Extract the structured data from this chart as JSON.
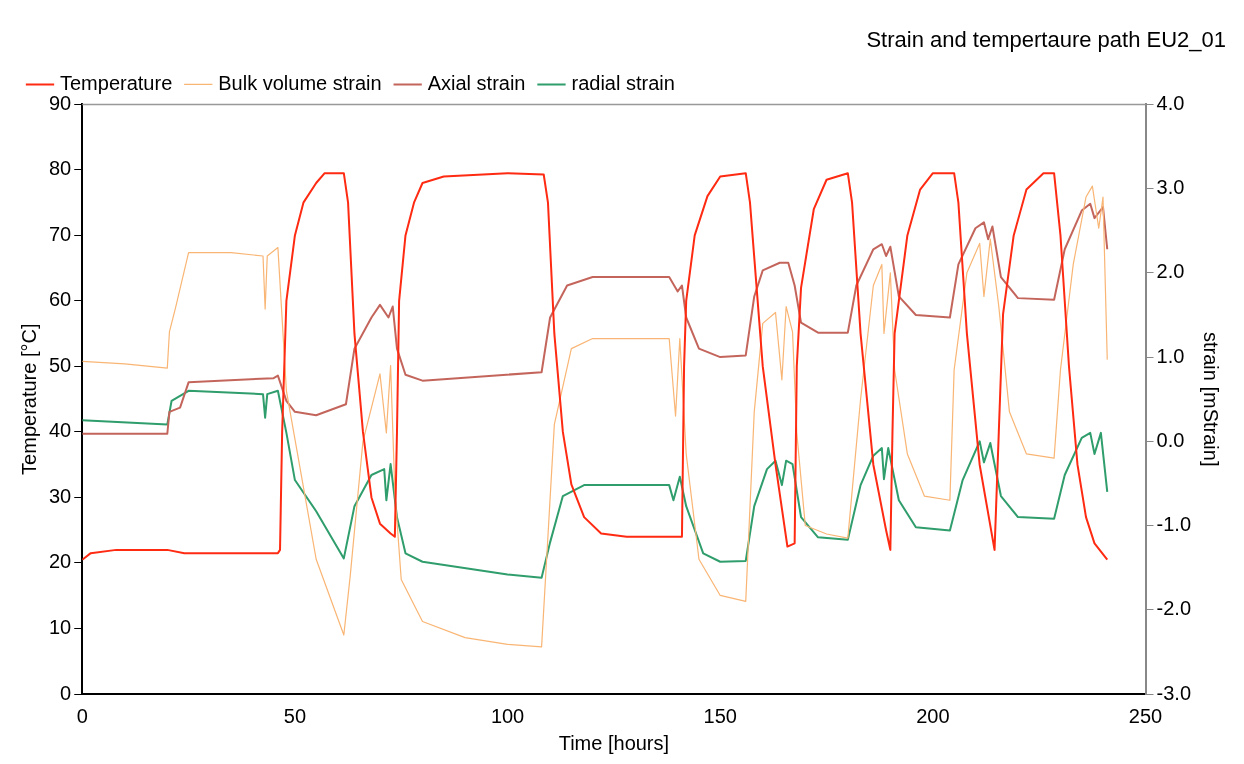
{
  "chart_data": {
    "type": "line",
    "title": "Strain and tempertaure path EU2_01",
    "xlabel": "Time [hours]",
    "ylabel": "Temperature [°C]",
    "y2label": "strain [mStrain]",
    "legend": "top left",
    "marker": "none",
    "line_style": "solid",
    "grid": false,
    "xlim": [
      0,
      250
    ],
    "xticks": [
      0,
      50,
      100,
      150,
      200,
      250
    ],
    "ylim": [
      0,
      90
    ],
    "yticks": [
      0,
      10,
      20,
      30,
      40,
      50,
      60,
      70,
      80,
      90
    ],
    "y2lim": [
      -3,
      4
    ],
    "y2ticks": [
      {
        "value": -3,
        "label": "-3.0"
      },
      {
        "value": -2,
        "label": "-2.0"
      },
      {
        "value": -1,
        "label": "-1.0"
      },
      {
        "value": 0,
        "label": "0.0"
      },
      {
        "value": 1,
        "label": "1.0"
      },
      {
        "value": 2,
        "label": "2.0"
      },
      {
        "value": 3,
        "label": "3.0"
      },
      {
        "value": 4,
        "label": "4.0"
      }
    ],
    "series": [
      {
        "name": "Temperature",
        "color": "#ff2a12",
        "x": [
          0,
          2,
          8,
          20,
          24,
          46,
          46.5,
          47,
          48,
          50,
          52,
          55,
          57,
          61.5,
          62.5,
          64,
          66,
          68,
          70,
          72.5,
          73.5,
          74,
          74.5,
          76,
          78,
          80,
          85,
          100,
          108.5,
          109.5,
          111,
          113,
          115,
          118,
          122,
          128,
          141,
          141.5,
          142,
          144,
          147,
          150,
          156,
          157,
          160,
          163,
          165.8,
          167.5,
          168,
          169,
          172,
          175,
          180,
          181,
          183,
          186,
          189,
          190,
          190.5,
          191,
          194,
          197,
          200,
          205,
          206,
          208,
          211,
          214.5,
          215.5,
          216.5,
          219,
          222,
          226,
          228.5,
          230,
          232,
          234,
          236,
          238,
          241
        ],
        "values": [
          20.5,
          21.5,
          22,
          22,
          21.5,
          21.5,
          22,
          40,
          60,
          70,
          75,
          78,
          79.5,
          79.5,
          75,
          55,
          40,
          30,
          26,
          24.5,
          24,
          40,
          60,
          70,
          75,
          78,
          79,
          79.5,
          79.3,
          75,
          55,
          40,
          32,
          27,
          24.5,
          24,
          24,
          50,
          60,
          70,
          76,
          79,
          79.5,
          75,
          50,
          35,
          22.5,
          23,
          50,
          62,
          74,
          78.5,
          79.5,
          75,
          55,
          35,
          25,
          22,
          40,
          55,
          70,
          77,
          79.5,
          79.5,
          75,
          55,
          35,
          22,
          40,
          58,
          70,
          77,
          79.5,
          79.5,
          70,
          50,
          35,
          27,
          23,
          20.5
        ]
      },
      {
        "name": "Bulk volume strain",
        "color": "#f9b574",
        "axis": "y2",
        "x": [
          0,
          10,
          20,
          20.5,
          22,
          25,
          35,
          42.5,
          43,
          43.5,
          46,
          48,
          55,
          61.5,
          63,
          66,
          70,
          71.5,
          72.5,
          73.5,
          75,
          80,
          90,
          100,
          108,
          111,
          115,
          120,
          138,
          139.5,
          140.5,
          142,
          145,
          150,
          156,
          158,
          160,
          163,
          164.5,
          165.5,
          167,
          168,
          170,
          175,
          180,
          183,
          186,
          188,
          188.5,
          190,
          191,
          194,
          198,
          204,
          205,
          208,
          211,
          212,
          213.5,
          215.5,
          218,
          222,
          228.5,
          230,
          233,
          236,
          237.5,
          239,
          240,
          241
        ],
        "values": [
          0.95,
          0.92,
          0.87,
          1.3,
          1.6,
          2.24,
          2.24,
          2.2,
          1.57,
          2.2,
          2.3,
          0.6,
          -1.4,
          -2.3,
          -1.6,
          0,
          0.8,
          0.1,
          0.9,
          -0.6,
          -1.64,
          -2.14,
          -2.33,
          -2.41,
          -2.44,
          0.2,
          1.1,
          1.22,
          1.22,
          0.3,
          1.22,
          -0.15,
          -1.4,
          -1.83,
          -1.9,
          0.35,
          1.4,
          1.53,
          0.73,
          1.6,
          1.3,
          0.1,
          -1,
          -1.1,
          -1.15,
          0.5,
          1.85,
          2.1,
          1.28,
          2,
          0.85,
          -0.15,
          -0.65,
          -0.7,
          0.85,
          2,
          2.35,
          1.72,
          2.4,
          1.6,
          0.35,
          -0.15,
          -0.2,
          0.85,
          2.1,
          2.9,
          3.03,
          2.53,
          2.9,
          0.97
        ]
      },
      {
        "name": "Axial strain",
        "color": "#c4655c",
        "axis": "y2",
        "x": [
          0,
          20,
          20.5,
          23,
          25,
          45,
          46,
          48,
          50,
          55,
          62,
          64,
          68,
          70,
          72,
          73,
          74,
          76,
          80,
          108,
          110,
          114,
          120,
          138,
          140,
          141,
          142,
          145,
          150,
          156,
          158,
          160,
          164,
          166,
          167.5,
          169,
          173,
          180,
          182,
          186,
          188,
          189,
          190,
          192,
          196,
          204,
          206,
          210,
          212,
          213,
          214,
          216,
          220,
          228.5,
          231,
          235,
          237,
          238,
          240,
          241
        ],
        "values": [
          0.09,
          0.09,
          0.35,
          0.4,
          0.7,
          0.75,
          0.78,
          0.48,
          0.35,
          0.31,
          0.44,
          1.1,
          1.47,
          1.62,
          1.47,
          1.6,
          1.1,
          0.79,
          0.72,
          0.82,
          1.47,
          1.85,
          1.95,
          1.95,
          1.78,
          1.85,
          1.47,
          1.1,
          1,
          1.02,
          1.72,
          2.03,
          2.12,
          2.12,
          1.85,
          1.41,
          1.29,
          1.29,
          1.85,
          2.28,
          2.34,
          2.2,
          2.31,
          1.72,
          1.5,
          1.47,
          2.1,
          2.53,
          2.6,
          2.4,
          2.55,
          1.95,
          1.7,
          1.68,
          2.28,
          2.74,
          2.82,
          2.65,
          2.78,
          2.28
        ]
      },
      {
        "name": "radial strain",
        "color": "#2f9d6c",
        "axis": "y2",
        "x": [
          0,
          20,
          21,
          25,
          42.5,
          43,
          43.5,
          46,
          48,
          50,
          55,
          61.5,
          64,
          68,
          71,
          71.5,
          72.5,
          74,
          76,
          80,
          100,
          108,
          110,
          113,
          118,
          138,
          139,
          140.5,
          142,
          146,
          150,
          156,
          158,
          161,
          163,
          164.5,
          165.5,
          167,
          169,
          173,
          180,
          183,
          186,
          188,
          188.5,
          189.5,
          192,
          196,
          204,
          207,
          211,
          212,
          213.5,
          216,
          220,
          228.5,
          231,
          235,
          237,
          238,
          239.5,
          241
        ],
        "values": [
          0.25,
          0.2,
          0.48,
          0.6,
          0.56,
          0.28,
          0.56,
          0.6,
          0.1,
          -0.46,
          -0.83,
          -1.39,
          -0.77,
          -0.4,
          -0.33,
          -0.7,
          -0.27,
          -0.9,
          -1.33,
          -1.43,
          -1.58,
          -1.62,
          -1.2,
          -0.65,
          -0.52,
          -0.52,
          -0.7,
          -0.42,
          -0.77,
          -1.33,
          -1.43,
          -1.42,
          -0.77,
          -0.33,
          -0.23,
          -0.52,
          -0.23,
          -0.27,
          -0.9,
          -1.14,
          -1.17,
          -0.52,
          -0.17,
          -0.08,
          -0.45,
          -0.08,
          -0.7,
          -1.02,
          -1.06,
          -0.46,
          0,
          -0.25,
          -0.02,
          -0.65,
          -0.9,
          -0.92,
          -0.4,
          0.04,
          0.1,
          -0.15,
          0.1,
          -0.6
        ]
      }
    ]
  }
}
